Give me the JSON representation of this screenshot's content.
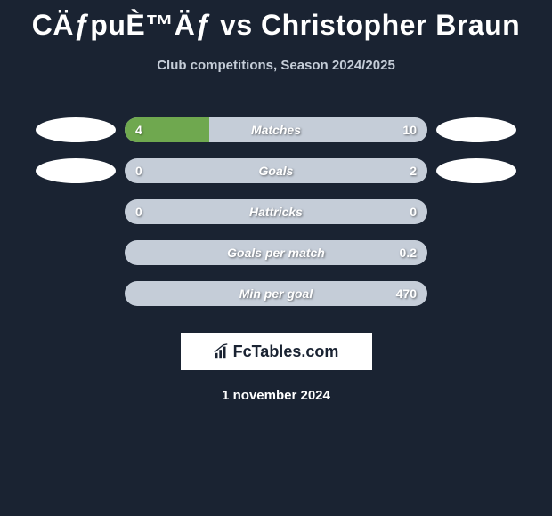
{
  "title": "CÄƒpuÈ™Äƒ vs Christopher Braun",
  "subtitle": "Club competitions, Season 2024/2025",
  "rows": [
    {
      "label": "Matches",
      "left_value": "4",
      "right_value": "10",
      "left_fill_pct": 28,
      "right_fill_pct": 0,
      "show_ellipses": true
    },
    {
      "label": "Goals",
      "left_value": "0",
      "right_value": "2",
      "left_fill_pct": 0,
      "right_fill_pct": 0,
      "show_ellipses": true
    },
    {
      "label": "Hattricks",
      "left_value": "0",
      "right_value": "0",
      "left_fill_pct": 0,
      "right_fill_pct": 0,
      "show_ellipses": false
    },
    {
      "label": "Goals per match",
      "left_value": "",
      "right_value": "0.2",
      "left_fill_pct": 0,
      "right_fill_pct": 0,
      "show_ellipses": false
    },
    {
      "label": "Min per goal",
      "left_value": "",
      "right_value": "470",
      "left_fill_pct": 0,
      "right_fill_pct": 0,
      "show_ellipses": false
    }
  ],
  "logo": {
    "text": "FcTables.com"
  },
  "date": "1 november 2024",
  "colors": {
    "background": "#1a2332",
    "bar_bg": "#c5cdd8",
    "bar_fill": "#6fa84f",
    "text": "#ffffff",
    "ellipse": "#ffffff"
  }
}
